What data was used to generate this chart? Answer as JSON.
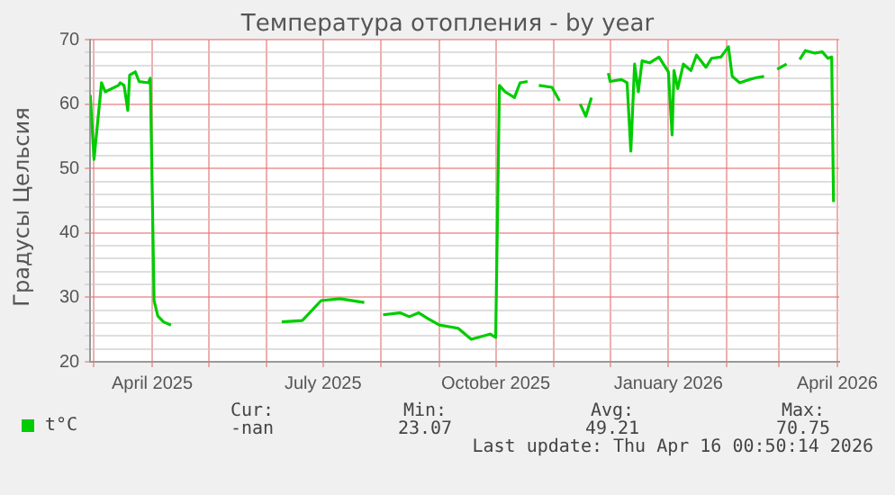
{
  "chart_data": {
    "type": "line",
    "title": "Температура отопления - by year",
    "ylabel": "Градусы Цельсия",
    "x": [
      "2025-02-27",
      "2025-03-01",
      "2025-03-05",
      "2025-03-07",
      "2025-03-14",
      "2025-03-15",
      "2025-03-17",
      "2025-03-19",
      "2025-03-20",
      "2025-03-23",
      "2025-03-25",
      "2025-03-30",
      "2025-03-31",
      "2025-04-02",
      "2025-04-04",
      "2025-04-07",
      "2025-04-11",
      "2025-05-11",
      "2025-06-09",
      "2025-06-20",
      "2025-06-30",
      "2025-07-10",
      "2025-07-23",
      "2025-07-28",
      "2025-08-02",
      "2025-08-11",
      "2025-08-16",
      "2025-08-21",
      "2025-08-26",
      "2025-09-01",
      "2025-09-11",
      "2025-09-18",
      "2025-09-28",
      "2025-10-01",
      "2025-10-03",
      "2025-10-06",
      "2025-10-11",
      "2025-10-14",
      "2025-10-18",
      "2025-10-21",
      "2025-10-24",
      "2025-10-31",
      "2025-11-04",
      "2025-11-11",
      "2025-11-15",
      "2025-11-18",
      "2025-11-21",
      "2025-11-25",
      "2025-11-30",
      "2025-12-01",
      "2025-12-07",
      "2025-12-10",
      "2025-12-12",
      "2025-12-14",
      "2025-12-16",
      "2025-12-18",
      "2025-12-22",
      "2025-12-27",
      "2026-01-01",
      "2026-01-03",
      "2026-01-04",
      "2026-01-06",
      "2026-01-09",
      "2026-01-13",
      "2026-01-16",
      "2026-01-21",
      "2026-01-24",
      "2026-01-29",
      "2026-01-31",
      "2026-02-02",
      "2026-02-04",
      "2026-02-08",
      "2026-02-13",
      "2026-02-17",
      "2026-02-21",
      "2026-02-25",
      "2026-02-28",
      "2026-03-05",
      "2026-03-08",
      "2026-03-12",
      "2026-03-15",
      "2026-03-20",
      "2026-03-24",
      "2026-03-27",
      "2026-03-29",
      "2026-03-30"
    ],
    "series": [
      {
        "name": "t°C",
        "color": "#00cc00",
        "values": [
          61.4,
          51.4,
          63.3,
          61.9,
          62.9,
          63.3,
          62.9,
          59.0,
          64.5,
          65.0,
          63.5,
          63.3,
          64.0,
          29.5,
          27.1,
          26.2,
          25.7,
          null,
          26.2,
          26.4,
          29.5,
          29.8,
          29.2,
          null,
          27.3,
          27.6,
          27.0,
          27.6,
          26.7,
          25.7,
          25.2,
          23.5,
          24.3,
          23.8,
          62.9,
          61.9,
          61.0,
          63.3,
          63.5,
          null,
          62.9,
          62.6,
          60.5,
          null,
          60.0,
          58.1,
          61.0,
          null,
          64.8,
          63.5,
          63.8,
          63.3,
          52.7,
          66.2,
          61.9,
          66.7,
          66.4,
          67.3,
          65.0,
          55.2,
          65.2,
          62.4,
          66.2,
          65.2,
          67.6,
          65.7,
          67.1,
          67.3,
          68.1,
          68.9,
          64.3,
          63.3,
          63.8,
          64.1,
          64.3,
          null,
          65.4,
          66.2,
          null,
          66.9,
          68.3,
          67.9,
          68.1,
          67.1,
          67.3,
          44.8
        ]
      }
    ],
    "xlim": [
      "2025-02-27",
      "2026-04-02"
    ],
    "xticks": [
      {
        "value": "2025-03-01",
        "label": null
      },
      {
        "value": "2025-04-01",
        "label": "April 2025"
      },
      {
        "value": "2025-05-01",
        "label": null
      },
      {
        "value": "2025-06-01",
        "label": null
      },
      {
        "value": "2025-07-01",
        "label": "July 2025"
      },
      {
        "value": "2025-08-01",
        "label": null
      },
      {
        "value": "2025-09-01",
        "label": null
      },
      {
        "value": "2025-10-01",
        "label": "October 2025"
      },
      {
        "value": "2025-11-01",
        "label": null
      },
      {
        "value": "2025-12-01",
        "label": null
      },
      {
        "value": "2026-01-01",
        "label": "January 2026"
      },
      {
        "value": "2026-02-01",
        "label": null
      },
      {
        "value": "2026-03-01",
        "label": null
      },
      {
        "value": "2026-04-01",
        "label": "April 2026"
      }
    ],
    "ylim": [
      20,
      70
    ],
    "yticks": [
      20,
      {
        "value": 22,
        "label": null
      },
      {
        "value": 24,
        "label": null
      },
      {
        "value": 26,
        "label": null
      },
      {
        "value": 28,
        "label": null
      },
      30,
      {
        "value": 32,
        "label": null
      },
      {
        "value": 34,
        "label": null
      },
      {
        "value": 36,
        "label": null
      },
      {
        "value": 38,
        "label": null
      },
      40,
      {
        "value": 42,
        "label": null
      },
      {
        "value": 44,
        "label": null
      },
      {
        "value": 46,
        "label": null
      },
      {
        "value": 48,
        "label": null
      },
      50,
      {
        "value": 52,
        "label": null
      },
      {
        "value": 54,
        "label": null
      },
      {
        "value": 56,
        "label": null
      },
      {
        "value": 58,
        "label": null
      },
      60,
      {
        "value": 62,
        "label": null
      },
      {
        "value": 64,
        "label": null
      },
      {
        "value": 66,
        "label": null
      },
      {
        "value": 68,
        "label": null
      },
      70
    ],
    "grid": true,
    "legend": "bottom left",
    "marker": "none",
    "line_style": "solid",
    "annotations": [
      "Cur:",
      "Min:",
      "Avg:",
      "Max:",
      "-nan",
      "23.07",
      "49.21",
      "70.75",
      "Last update: Thu Apr 16 00:50:14 2026"
    ]
  }
}
